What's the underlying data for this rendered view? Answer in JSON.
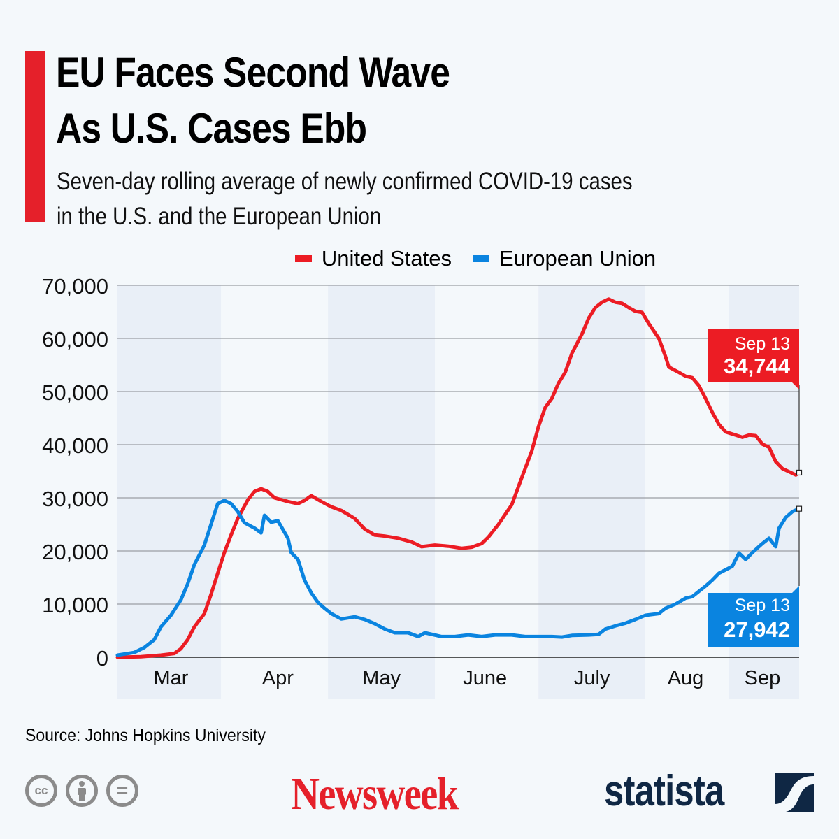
{
  "header": {
    "title_line1": "EU Faces Second Wave",
    "title_line2": "As U.S. Cases Ebb",
    "subtitle_line1": "Seven-day rolling average of newly confirmed COVID-19 cases",
    "subtitle_line2": "in the U.S. and the European Union",
    "accent_color": "#e5202a"
  },
  "legend": [
    {
      "label": "United States",
      "color": "#ec1c24"
    },
    {
      "label": "European Union",
      "color": "#0a84e0"
    }
  ],
  "chart_data": {
    "type": "line",
    "title": "EU Faces Second Wave As U.S. Cases Ebb",
    "subtitle": "Seven-day rolling average of newly confirmed COVID-19 cases in the U.S. and the European Union",
    "xlabel": "",
    "ylabel": "",
    "x_unit": "days since start of series (last point = Sep 13)",
    "xlim": [
      0,
      204
    ],
    "ylim": [
      0,
      70000
    ],
    "yticks": [
      0,
      10000,
      20000,
      30000,
      40000,
      50000,
      60000,
      70000
    ],
    "ytick_labels": [
      "0",
      "10,000",
      "20,000",
      "30,000",
      "40,000",
      "50,000",
      "60,000",
      "70,000"
    ],
    "grid": true,
    "legend_position": "top-center",
    "month_ticks": [
      {
        "label": "Mar",
        "x": 16
      },
      {
        "label": "Apr",
        "x": 48
      },
      {
        "label": "May",
        "x": 79
      },
      {
        "label": "June",
        "x": 110
      },
      {
        "label": "July",
        "x": 142
      },
      {
        "label": "Aug",
        "x": 170
      },
      {
        "label": "Sep",
        "x": 193
      }
    ],
    "month_bands": [
      {
        "from": 0,
        "to": 31,
        "shaded": true
      },
      {
        "from": 31,
        "to": 63,
        "shaded": false
      },
      {
        "from": 63,
        "to": 95,
        "shaded": true
      },
      {
        "from": 95,
        "to": 126,
        "shaded": false
      },
      {
        "from": 126,
        "to": 158,
        "shaded": true
      },
      {
        "from": 158,
        "to": 183,
        "shaded": false
      },
      {
        "from": 183,
        "to": 204,
        "shaded": true
      }
    ],
    "series": [
      {
        "name": "United States",
        "color": "#ec1c24",
        "x": [
          0,
          7,
          13,
          17,
          19,
          21,
          23,
          26,
          28,
          30,
          32,
          34,
          36,
          39,
          41,
          43,
          45,
          47,
          51,
          54,
          56,
          58,
          61,
          64,
          67,
          71,
          74,
          77,
          80,
          84,
          88,
          91,
          95,
          99,
          103,
          106,
          109,
          111,
          114,
          118,
          121,
          124,
          126,
          128,
          130,
          132,
          134,
          136,
          139,
          141,
          143,
          145,
          147,
          149,
          151,
          153,
          155,
          157,
          159,
          162,
          164,
          165,
          168,
          170,
          172,
          174,
          176,
          178,
          180,
          182,
          185,
          187,
          189,
          191,
          193,
          195,
          197,
          199,
          201,
          203,
          204
        ],
        "values": [
          0,
          100,
          400,
          700,
          1600,
          3300,
          5700,
          8200,
          11800,
          15800,
          19700,
          23000,
          26100,
          29600,
          31200,
          31700,
          31200,
          30000,
          29300,
          28900,
          29500,
          30400,
          29300,
          28300,
          27600,
          26100,
          24100,
          23000,
          22800,
          22400,
          21700,
          20800,
          21100,
          20900,
          20500,
          20700,
          21400,
          22600,
          25000,
          28700,
          33800,
          38800,
          43400,
          47000,
          48700,
          51600,
          53600,
          57200,
          60800,
          63800,
          65800,
          66800,
          67400,
          66800,
          66600,
          65800,
          65100,
          64900,
          62800,
          60000,
          56600,
          54600,
          53600,
          52900,
          52600,
          51100,
          48700,
          46100,
          43800,
          42400,
          41800,
          41400,
          41800,
          41700,
          40100,
          39500,
          36800,
          35500,
          34900,
          34300,
          34744
        ],
        "end_label": {
          "date": "Sep 13",
          "value": "34,744"
        }
      },
      {
        "name": "European Union",
        "color": "#0a84e0",
        "x": [
          0,
          5,
          8,
          11,
          13,
          16,
          19,
          21,
          23,
          26,
          28,
          30,
          32,
          34,
          36,
          38,
          41,
          43,
          44,
          46,
          48,
          51,
          52,
          54,
          56,
          58,
          60,
          62,
          64,
          67,
          71,
          74,
          77,
          80,
          83,
          87,
          90,
          92,
          97,
          101,
          105,
          109,
          113,
          118,
          122,
          126,
          130,
          133,
          136,
          141,
          144,
          146,
          149,
          152,
          155,
          158,
          162,
          164,
          167,
          170,
          172,
          174,
          176,
          178,
          180,
          184,
          186,
          188,
          190,
          193,
          195,
          197,
          198,
          200,
          202,
          204
        ],
        "values": [
          400,
          900,
          1800,
          3300,
          5700,
          7900,
          10800,
          13800,
          17400,
          21100,
          25000,
          28900,
          29500,
          28900,
          27400,
          25300,
          24300,
          23400,
          26700,
          25400,
          25700,
          22400,
          19700,
          18400,
          14500,
          12100,
          10300,
          9200,
          8200,
          7200,
          7600,
          7100,
          6300,
          5300,
          4600,
          4600,
          3900,
          4600,
          3900,
          3900,
          4200,
          3900,
          4200,
          4200,
          3900,
          3900,
          3900,
          3800,
          4100,
          4200,
          4300,
          5300,
          5900,
          6400,
          7100,
          7900,
          8200,
          9200,
          10000,
          11100,
          11400,
          12400,
          13400,
          14500,
          15800,
          17100,
          19600,
          18400,
          19700,
          21400,
          22400,
          20800,
          24300,
          26300,
          27400,
          27942
        ],
        "end_label": {
          "date": "Sep 13",
          "value": "27,942"
        }
      }
    ]
  },
  "footer": {
    "source": "Source: Johns Hopkins University",
    "license_icons": [
      "creative-commons-icon",
      "attribution-icon",
      "no-derivatives-icon"
    ],
    "cc_text": "cc",
    "nd_text": "=",
    "publisher": "Newsweek",
    "brand": "statista",
    "publisher_color": "#e5202a",
    "brand_color": "#0f2744"
  }
}
